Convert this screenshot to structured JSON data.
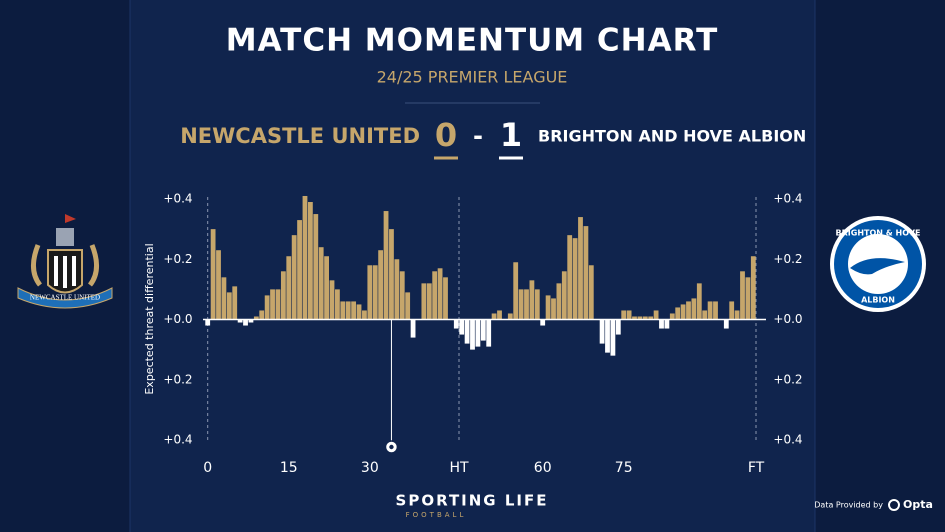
{
  "chart_data": {
    "type": "bar",
    "title": "MATCH MOMENTUM CHART",
    "subtitle": "24/25 PREMIER LEAGUE",
    "home_team": "NEWCASTLE UNITED",
    "away_team": "BRIGHTON AND HOVE ALBION",
    "home_score": 0,
    "score_separator": "-",
    "away_score": 1,
    "ylabel": "Expected threat differential",
    "ylim": [
      -0.4,
      0.4
    ],
    "yticks": [
      {
        "value": 0.4,
        "label": "+0.4"
      },
      {
        "value": 0.2,
        "label": "+0.2"
      },
      {
        "value": 0,
        "label": "+0.0"
      },
      {
        "value": -0.2,
        "label": "+0.2"
      },
      {
        "value": -0.4,
        "label": "+0.4"
      }
    ],
    "colors": {
      "positive": "#c6a66b",
      "negative": "#ffffff"
    },
    "halves": [
      {
        "xlim": [
          -0.5,
          46.5
        ],
        "xticks": [
          {
            "value": 0,
            "label": "0",
            "line": true
          },
          15,
          30,
          {
            "value": 46.5,
            "label": "HT",
            "line": true
          }
        ],
        "x": [
          0,
          1,
          2,
          3,
          4,
          5,
          6,
          7,
          8,
          9,
          10,
          11,
          12,
          13,
          14,
          15,
          16,
          17,
          18,
          19,
          20,
          21,
          22,
          23,
          24,
          25,
          26,
          27,
          28,
          29,
          30,
          31,
          32,
          33,
          34,
          35,
          36,
          37,
          38,
          39,
          40,
          41,
          42,
          43,
          44,
          45,
          46
        ],
        "values": [
          -0.02,
          0.3,
          0.23,
          0.14,
          0.09,
          0.11,
          -0.01,
          -0.02,
          -0.01,
          0.01,
          0.03,
          0.08,
          0.1,
          0.1,
          0.16,
          0.21,
          0.28,
          0.33,
          0.41,
          0.39,
          0.35,
          0.24,
          0.21,
          0.13,
          0.1,
          0.06,
          0.06,
          0.06,
          0.05,
          0.03,
          0.18,
          0.18,
          0.23,
          0.36,
          0.3,
          0.2,
          0.16,
          0.09,
          -0.06,
          0,
          0.12,
          0.12,
          0.16,
          0.17,
          0.14,
          0,
          -0.03
        ],
        "goals": [
          34
        ]
      },
      {
        "xlim": [
          44.5,
          99.5
        ],
        "xticks": [
          60,
          75,
          {
            "value": 99.5,
            "label": "FT",
            "line": true
          }
        ],
        "x": [
          45,
          46,
          47,
          48,
          49,
          50,
          51,
          52,
          53,
          54,
          55,
          56,
          57,
          58,
          59,
          60,
          61,
          62,
          63,
          64,
          65,
          66,
          67,
          68,
          69,
          70,
          71,
          72,
          73,
          74,
          75,
          76,
          77,
          78,
          79,
          80,
          81,
          82,
          83,
          84,
          85,
          86,
          87,
          88,
          89,
          90,
          91,
          92,
          93,
          94,
          95,
          96,
          97,
          98,
          99
        ],
        "values": [
          -0.05,
          -0.08,
          -0.1,
          -0.09,
          -0.07,
          -0.09,
          0.02,
          0.03,
          0,
          0.02,
          0.19,
          0.1,
          0.1,
          0.13,
          0.1,
          -0.02,
          0.08,
          0.07,
          0.12,
          0.16,
          0.28,
          0.27,
          0.34,
          0.31,
          0.18,
          0,
          -0.08,
          -0.11,
          -0.12,
          -0.05,
          0.03,
          0.03,
          0.01,
          0.01,
          0.01,
          0.01,
          0.03,
          -0.03,
          -0.03,
          0.02,
          0.04,
          0.05,
          0.06,
          0.07,
          0.12,
          0.03,
          0.06,
          0.06,
          0,
          -0.03,
          0.06,
          0.03,
          0.16,
          0.14,
          0.21
        ],
        "goals": []
      }
    ],
    "badges": {
      "home_text": "NEWCASTLE UNITED",
      "away_top": "BRIGHTON & HOVE",
      "away_bottom": "ALBION"
    },
    "brand": "SPORTING LIFE",
    "brand_sub": "FOOTBALL",
    "credit": "Data Provided by",
    "provider": "Opta"
  }
}
